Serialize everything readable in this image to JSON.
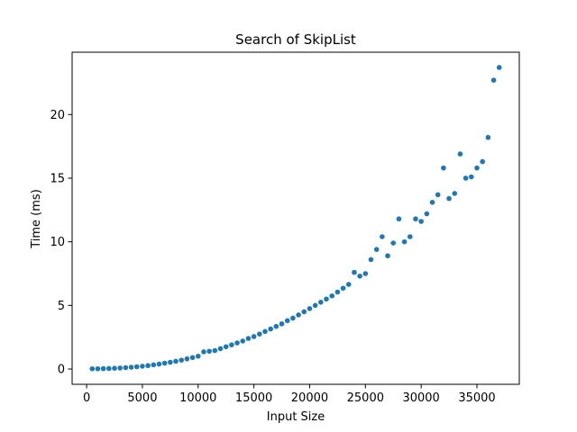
{
  "chart_data": {
    "type": "scatter",
    "title": "Search of SkipList",
    "xlabel": "Input Size",
    "ylabel": "Time (ms)",
    "xlim": [
      -1300,
      38800
    ],
    "ylim": [
      -1.2,
      24.9
    ],
    "xticks": [
      0,
      5000,
      10000,
      15000,
      20000,
      25000,
      30000,
      35000
    ],
    "yticks": [
      0,
      5,
      10,
      15,
      20
    ],
    "grid": false,
    "marker_color": "#1f77b4",
    "series": [
      {
        "x": [
          500,
          1000,
          1500,
          2000,
          2500,
          3000,
          3500,
          4000,
          4500,
          5000,
          5500,
          6000,
          6500,
          7000,
          7500,
          8000,
          8500,
          9000,
          9500,
          10000,
          10500,
          11000,
          11500,
          12000,
          12500,
          13000,
          13500,
          14000,
          14500,
          15000,
          15500,
          16000,
          16500,
          17000,
          17500,
          18000,
          18500,
          19000,
          19500,
          20000,
          20500,
          21000,
          21500,
          22000,
          22500,
          23000,
          23500,
          24000,
          24500,
          25000,
          25500,
          26000,
          26500,
          27000,
          27500,
          28000,
          28500,
          29000,
          29500,
          30000,
          30500,
          31000,
          31500,
          32000,
          32500,
          33000,
          33500,
          34000,
          34500,
          35000,
          35500,
          36000,
          36500,
          37000
        ],
        "y": [
          0.02,
          0.02,
          0.03,
          0.04,
          0.06,
          0.08,
          0.11,
          0.14,
          0.18,
          0.22,
          0.27,
          0.33,
          0.39,
          0.46,
          0.53,
          0.61,
          0.7,
          0.8,
          0.9,
          1.01,
          1.35,
          1.4,
          1.45,
          1.6,
          1.75,
          1.9,
          2.05,
          2.2,
          2.4,
          2.55,
          2.75,
          2.95,
          3.15,
          3.35,
          3.55,
          3.8,
          4.0,
          4.25,
          4.5,
          4.75,
          5.0,
          5.25,
          5.5,
          5.75,
          6.05,
          6.35,
          6.65,
          7.6,
          7.3,
          7.5,
          8.6,
          9.4,
          10.4,
          8.9,
          9.9,
          11.8,
          10.0,
          10.4,
          11.8,
          11.6,
          12.2,
          13.1,
          13.7,
          15.8,
          13.4,
          13.8,
          16.9,
          15.0,
          15.1,
          15.8,
          16.3,
          18.2,
          22.7,
          23.7
        ]
      }
    ]
  }
}
